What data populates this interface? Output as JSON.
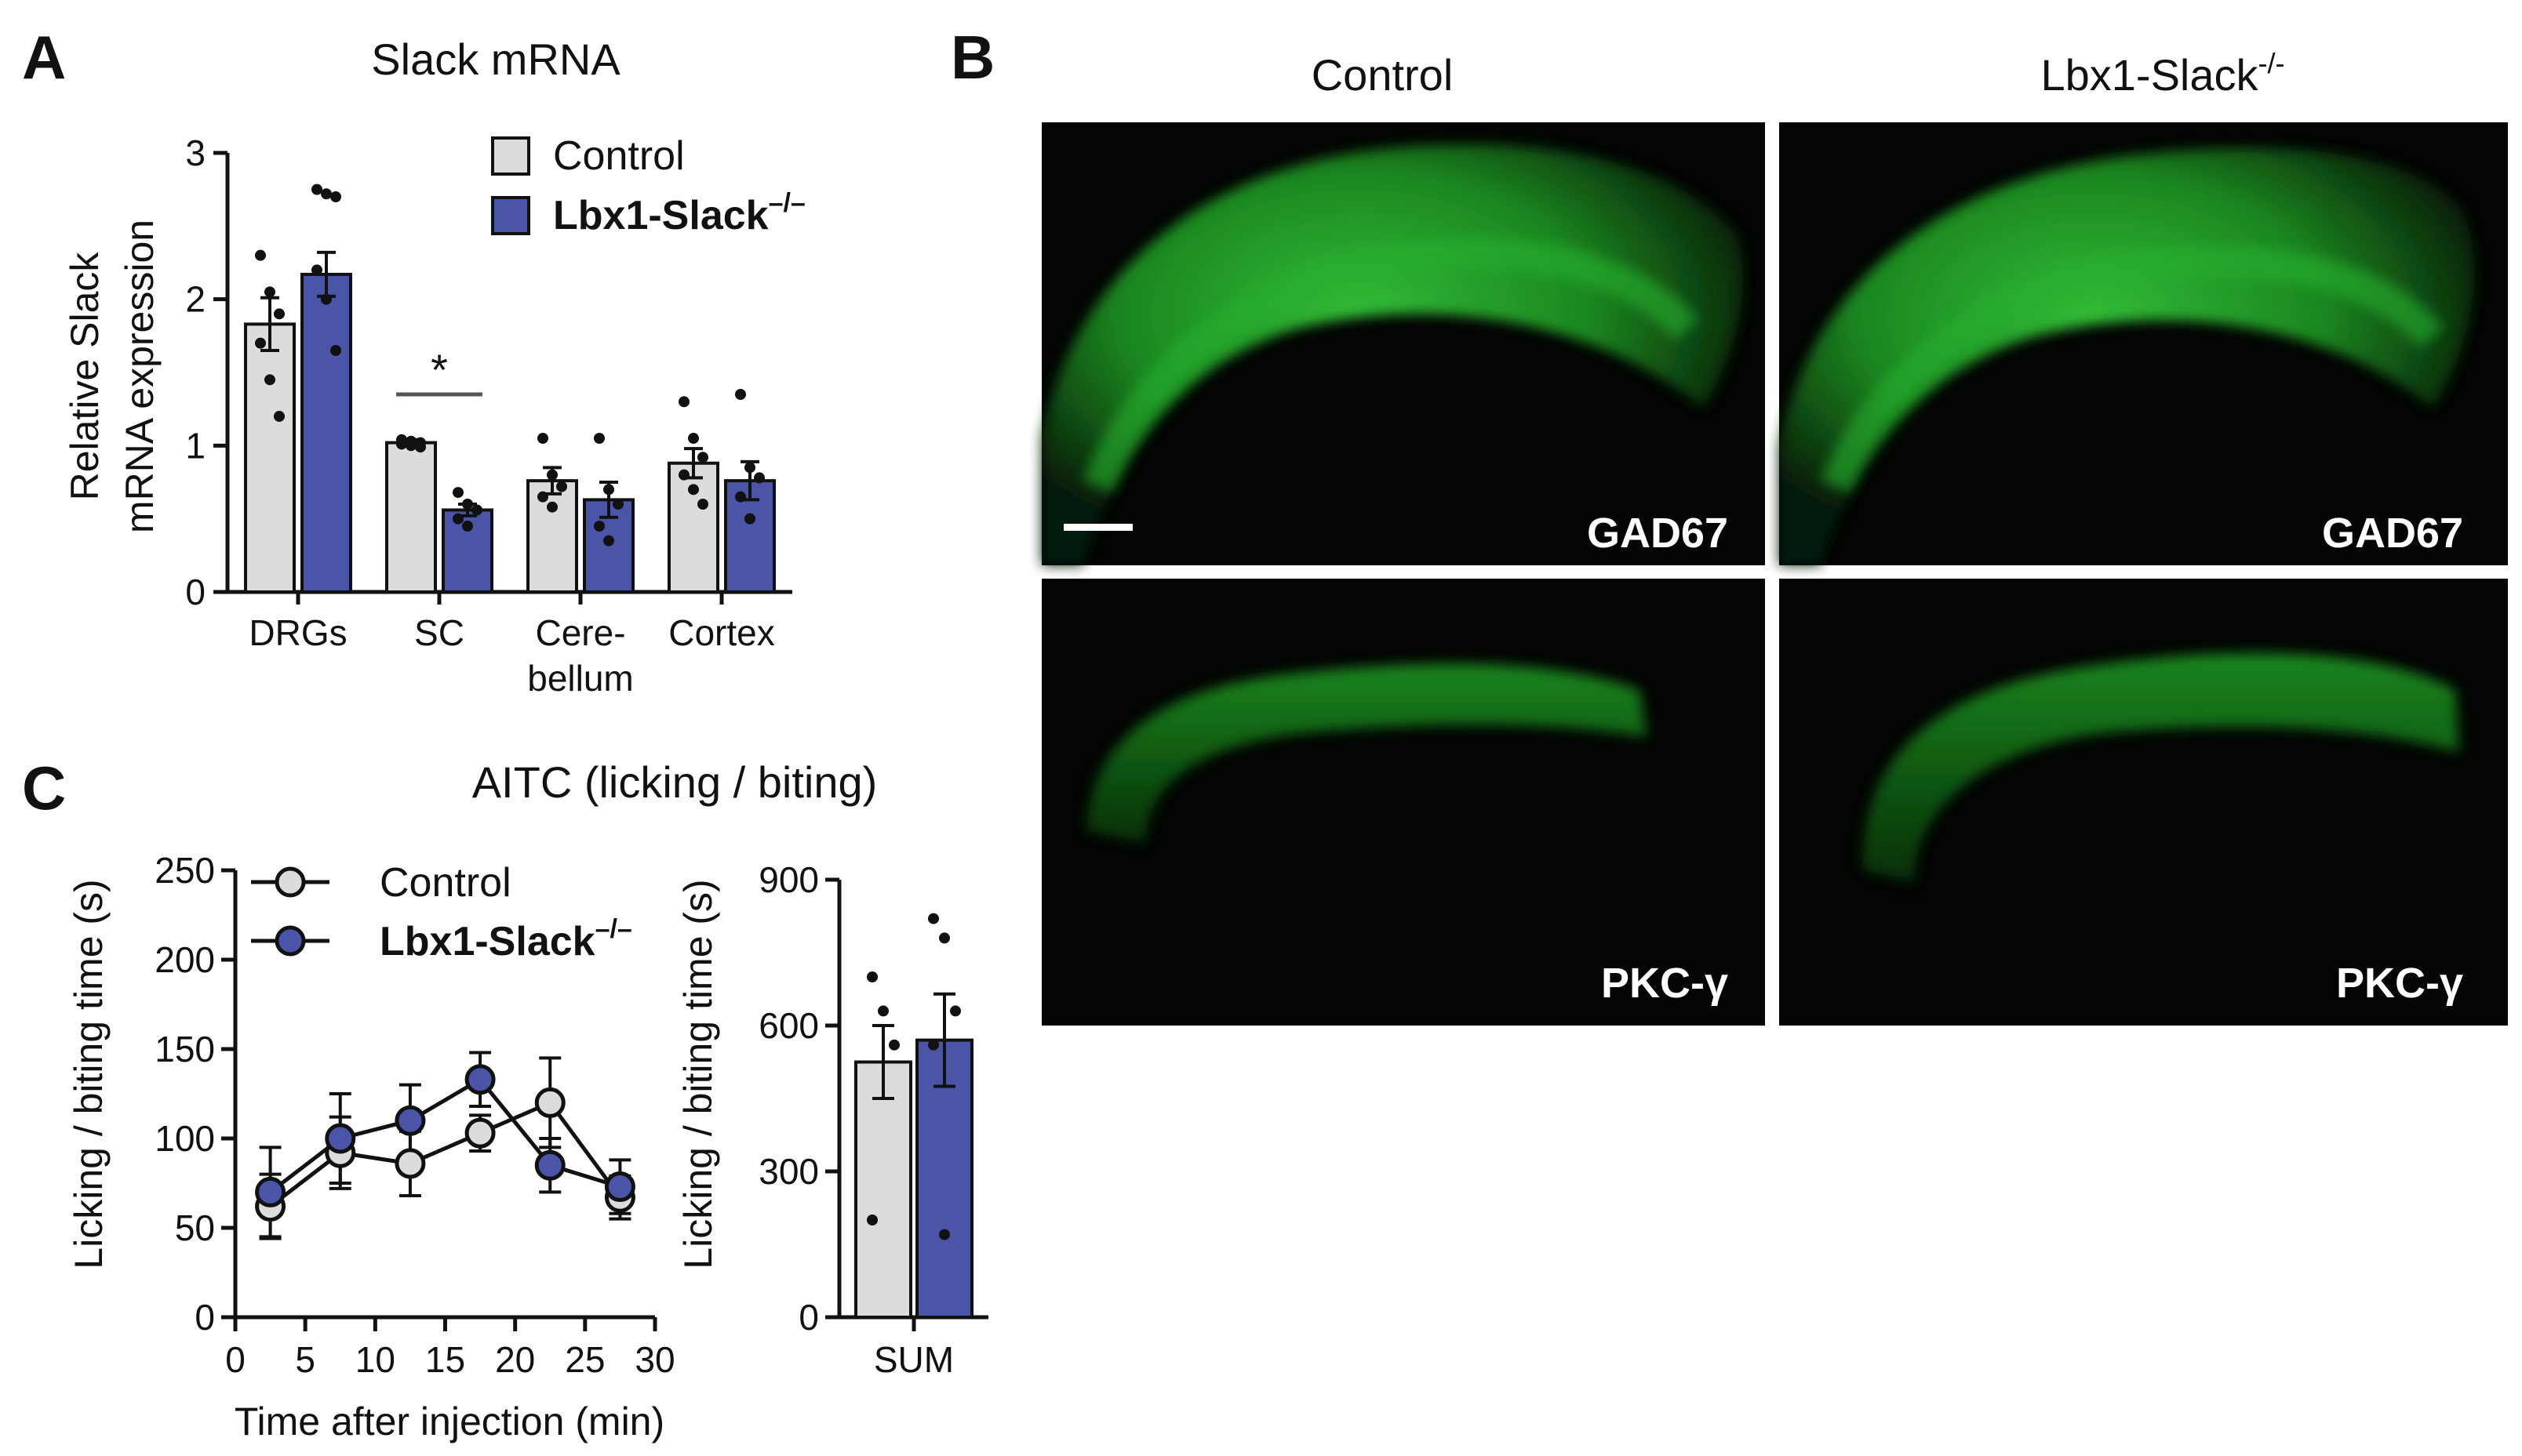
{
  "figure": {
    "panels": {
      "a": {
        "letter": "A",
        "title": "Slack mRNA"
      },
      "b": {
        "letter": "B"
      },
      "c": {
        "letter": "C",
        "title": "AITC (licking / biting)"
      }
    },
    "legend": {
      "control": "Control",
      "ko_prefix": "Lbx1-Slack",
      "ko_sup": "–/–"
    },
    "panel_b": {
      "col_control": "Control",
      "col_ko_prefix": "Lbx1-Slack",
      "col_ko_sup": "-/-",
      "label_gad": "GAD67",
      "label_pkc": "PKC-γ"
    }
  },
  "chart_data": [
    {
      "id": "A",
      "type": "bar",
      "title": "Slack mRNA",
      "ylabel_lines": [
        "Relative Slack",
        "mRNA expression"
      ],
      "categories": [
        "DRGs",
        "SC",
        "Cere-\nbellum",
        "Cortex"
      ],
      "category_lines": [
        [
          "DRGs"
        ],
        [
          "SC"
        ],
        [
          "Cere-",
          "bellum"
        ],
        [
          "Cortex"
        ]
      ],
      "ylim": [
        0,
        3
      ],
      "yticks": [
        0,
        1,
        2,
        3
      ],
      "significance": [
        {
          "category": "SC",
          "label": "*"
        }
      ],
      "series": [
        {
          "name": "Control",
          "color": "#dcdcdc",
          "values": [
            1.83,
            1.02,
            0.76,
            0.88
          ],
          "sem": [
            0.18,
            0.02,
            0.09,
            0.1
          ],
          "points": [
            [
              2.3,
              2.05,
              1.9,
              1.7,
              1.45,
              1.2
            ],
            [
              1.04,
              1.03,
              1.02,
              1.01,
              1.0,
              0.99
            ],
            [
              1.05,
              0.8,
              0.72,
              0.65,
              0.58
            ],
            [
              1.3,
              1.05,
              0.92,
              0.8,
              0.7,
              0.6
            ]
          ]
        },
        {
          "name": "Lbx1-Slack–/–",
          "color": "#4a55a8",
          "values": [
            2.17,
            0.56,
            0.63,
            0.76
          ],
          "sem": [
            0.15,
            0.04,
            0.12,
            0.13
          ],
          "points": [
            [
              2.75,
              2.72,
              2.7,
              2.2,
              2.0,
              1.65
            ],
            [
              0.68,
              0.6,
              0.56,
              0.5,
              0.45
            ],
            [
              1.05,
              0.7,
              0.6,
              0.45,
              0.35
            ],
            [
              1.35,
              0.85,
              0.78,
              0.65,
              0.5
            ]
          ]
        }
      ]
    },
    {
      "id": "C-left",
      "type": "line",
      "title": "AITC (licking / biting)",
      "xlabel": "Time after injection (min)",
      "ylabel": "Licking / biting time (s)",
      "xlim": [
        0,
        30
      ],
      "xticks": [
        0,
        5,
        10,
        15,
        20,
        25,
        30
      ],
      "ylim": [
        0,
        250
      ],
      "yticks": [
        0,
        50,
        100,
        150,
        200,
        250
      ],
      "x": [
        2.5,
        7.5,
        12.5,
        17.5,
        22.5,
        27.5
      ],
      "series": [
        {
          "name": "Control",
          "color": "#dcdcdc",
          "values": [
            62,
            92,
            86,
            103,
            120,
            67
          ],
          "sem": [
            18,
            20,
            18,
            10,
            25,
            12
          ]
        },
        {
          "name": "Lbx1-Slack–/–",
          "color": "#4a55a8",
          "values": [
            70,
            100,
            110,
            133,
            85,
            73
          ],
          "sem": [
            25,
            25,
            20,
            15,
            15,
            15
          ]
        }
      ]
    },
    {
      "id": "C-right",
      "type": "bar",
      "categories": [
        "SUM"
      ],
      "ylim": [
        0,
        900
      ],
      "yticks": [
        0,
        300,
        600,
        900
      ],
      "ylabel": "Licking / biting time (s)",
      "series": [
        {
          "name": "Control",
          "color": "#dcdcdc",
          "values": [
            525
          ],
          "sem": [
            75
          ],
          "points": [
            [
              700,
              630,
              560,
              200
            ]
          ]
        },
        {
          "name": "Lbx1-Slack–/–",
          "color": "#4a55a8",
          "values": [
            570
          ],
          "sem": [
            95
          ],
          "points": [
            [
              820,
              780,
              630,
              560,
              170
            ]
          ]
        }
      ]
    }
  ]
}
